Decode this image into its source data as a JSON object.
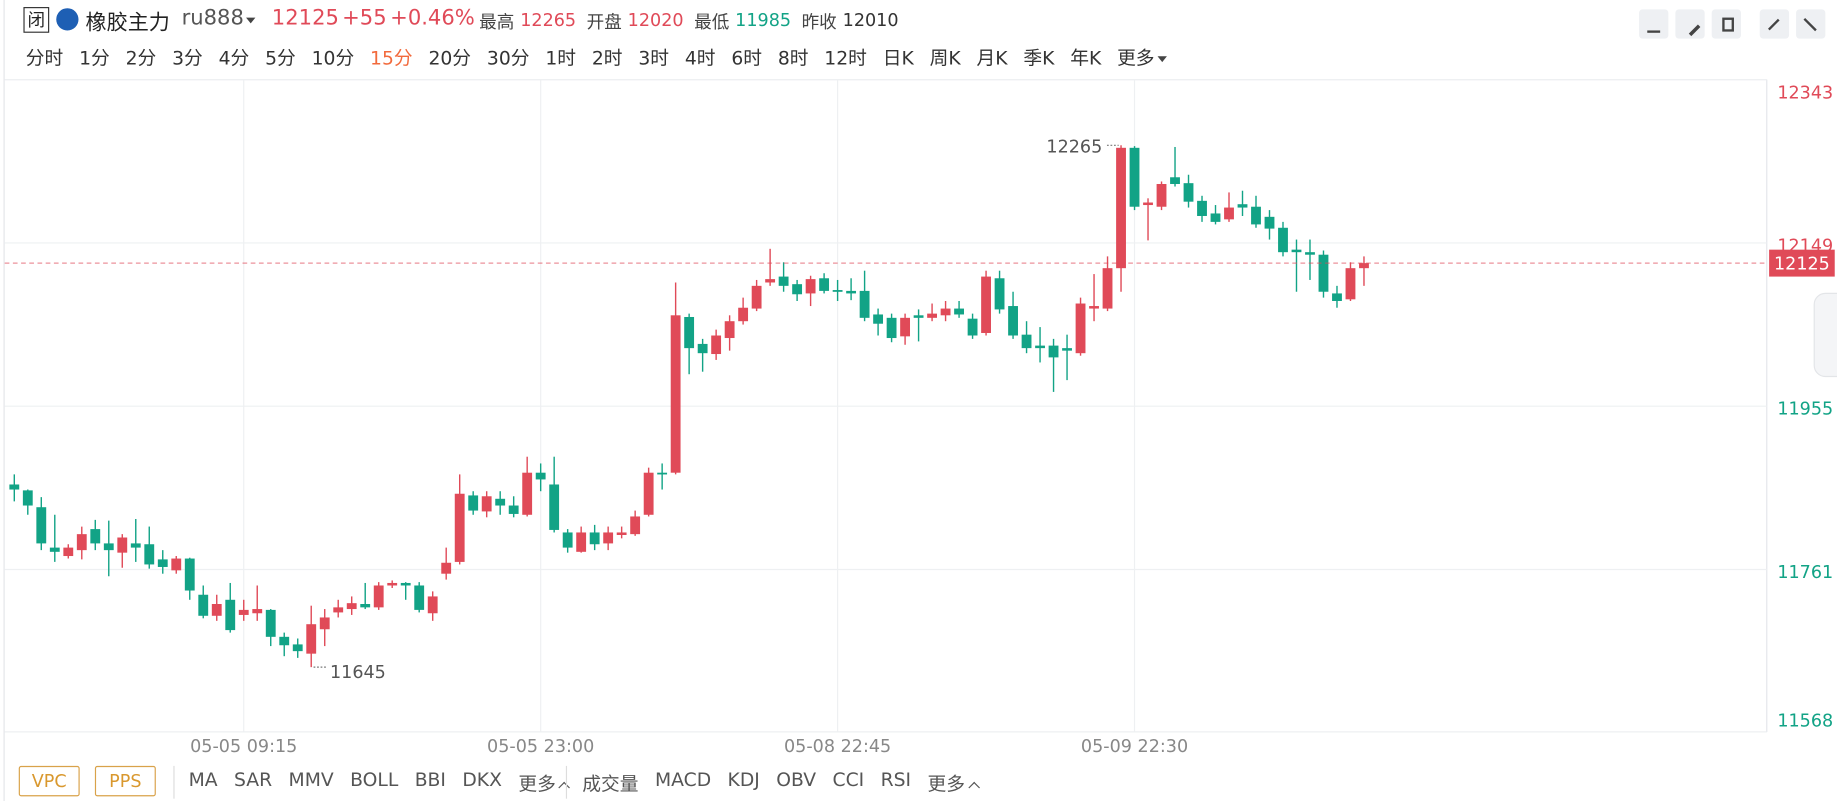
{
  "header": {
    "badge": "闭",
    "name": "橡胶主力",
    "code": "ru888",
    "price": "12125",
    "change": "+55",
    "change_pct": "+0.46%",
    "stats": [
      {
        "label": "最高",
        "value": 12265
      },
      {
        "label": "开盘",
        "value": 12020
      },
      {
        "label": "最低",
        "value": 11985
      },
      {
        "label": "昨收",
        "value": 12010
      }
    ],
    "reference_stat": 3,
    "periods": [
      "分时",
      "1分",
      "2分",
      "3分",
      "4分",
      "5分",
      "10分",
      "15分",
      "20分",
      "30分",
      "1时",
      "2时",
      "3时",
      "4时",
      "6时",
      "8时",
      "12时",
      "日K",
      "周K",
      "月K",
      "季K",
      "年K",
      "更多"
    ],
    "active_period": 7
  },
  "chart_data": {
    "type": "candlestick",
    "up_color": "#e04a58",
    "down_color": "#12a386",
    "grid": true,
    "ylim": [
      11568,
      12343
    ],
    "yticks": [
      12343,
      12149,
      11955,
      11761,
      11568
    ],
    "categories": [
      null,
      null,
      null,
      null,
      null,
      null,
      null,
      null,
      null,
      null,
      null,
      null,
      null,
      null,
      null,
      null,
      null,
      "05-05 09:15",
      null,
      null,
      null,
      null,
      null,
      null,
      null,
      null,
      null,
      null,
      null,
      null,
      null,
      null,
      null,
      null,
      null,
      null,
      null,
      null,
      null,
      "05-05 23:00",
      null,
      null,
      null,
      null,
      null,
      null,
      null,
      null,
      null,
      null,
      null,
      null,
      null,
      null,
      null,
      null,
      null,
      null,
      null,
      null,
      null,
      "05-08 22:45",
      null,
      null,
      null,
      null,
      null,
      null,
      null,
      null,
      null,
      null,
      null,
      null,
      null,
      null,
      null,
      null,
      null,
      null,
      null,
      null,
      null,
      "05-09 22:30",
      null,
      null,
      null,
      null,
      null,
      null,
      null,
      null,
      null,
      null,
      null,
      null,
      null,
      null,
      null,
      null,
      null
    ],
    "ohlc": {
      "open": [
        11862,
        11855,
        11835,
        11787,
        11777,
        11784,
        11809,
        11792,
        11781,
        11792,
        11791,
        11773,
        11760,
        11774,
        11731,
        11706,
        11725,
        11707,
        11709,
        11713,
        11681,
        11672,
        11661,
        11690,
        11710,
        11714,
        11720,
        11716,
        11742,
        11745,
        11742,
        11709,
        11756,
        11770,
        11849,
        11830,
        11845,
        11837,
        11826,
        11876,
        11862,
        11805,
        11782,
        11805,
        11792,
        11802,
        11803,
        11826,
        11876,
        11876,
        12061,
        12029,
        12017,
        12036,
        12056,
        12071,
        12102,
        12109,
        12100,
        12089,
        12107,
        12093,
        12092,
        12092,
        12064,
        12060,
        12038,
        12063,
        12060,
        12063,
        12071,
        12059,
        12042,
        12107,
        12074,
        12040,
        12027,
        12027,
        12024,
        12018,
        12071,
        12071,
        12119,
        12262,
        12194,
        12192,
        12227,
        12220,
        12199,
        12184,
        12177,
        12195,
        12192,
        12180,
        12167,
        12141,
        12138,
        12135,
        12089,
        12082,
        12119
      ],
      "high": [
        11874,
        11856,
        11847,
        11826,
        11791,
        11812,
        11820,
        11819,
        11803,
        11821,
        11812,
        11784,
        11777,
        11775,
        11742,
        11731,
        11745,
        11725,
        11742,
        11714,
        11686,
        11679,
        11718,
        11714,
        11725,
        11729,
        11745,
        11746,
        11748,
        11746,
        11746,
        11735,
        11787,
        11874,
        11854,
        11854,
        11854,
        11848,
        11895,
        11887,
        11895,
        11809,
        11812,
        11814,
        11812,
        11812,
        11831,
        11882,
        11887,
        12102,
        12065,
        12035,
        12046,
        12063,
        12084,
        12105,
        12142,
        12126,
        12105,
        12110,
        12113,
        12105,
        12107,
        12116,
        12071,
        12065,
        12065,
        12070,
        12077,
        12080,
        12080,
        12065,
        12116,
        12116,
        12091,
        12056,
        12049,
        12035,
        12040,
        12084,
        12112,
        12133,
        12265,
        12264,
        12202,
        12222,
        12263,
        12230,
        12205,
        12194,
        12209,
        12211,
        12205,
        12188,
        12174,
        12153,
        12153,
        12140,
        12098,
        12126,
        12133
      ],
      "low": [
        11842,
        11826,
        11784,
        11770,
        11774,
        11773,
        11784,
        11753,
        11763,
        11770,
        11762,
        11756,
        11756,
        11725,
        11703,
        11700,
        11686,
        11700,
        11700,
        11670,
        11658,
        11656,
        11645,
        11670,
        11704,
        11707,
        11714,
        11713,
        11739,
        11725,
        11710,
        11700,
        11749,
        11767,
        11826,
        11823,
        11826,
        11823,
        11824,
        11854,
        11805,
        11781,
        11781,
        11784,
        11784,
        11798,
        11801,
        11824,
        11856,
        11874,
        11993,
        11996,
        12010,
        12021,
        12052,
        12068,
        12098,
        12091,
        12080,
        12074,
        12089,
        12080,
        12081,
        12056,
        12039,
        12031,
        12028,
        12032,
        12056,
        12056,
        12060,
        12035,
        12039,
        12065,
        12035,
        12018,
        12007,
        11972,
        11986,
        12015,
        12056,
        12068,
        12091,
        12188,
        12152,
        12188,
        12216,
        12191,
        12174,
        12171,
        12174,
        12181,
        12167,
        12153,
        12133,
        12091,
        12105,
        12084,
        12072,
        12080,
        12098
      ],
      "close": [
        11856,
        11837,
        11792,
        11782,
        11787,
        11803,
        11792,
        11784,
        11799,
        11787,
        11767,
        11764,
        11774,
        11736,
        11706,
        11720,
        11689,
        11713,
        11714,
        11681,
        11671,
        11664,
        11696,
        11704,
        11716,
        11721,
        11716,
        11742,
        11745,
        11742,
        11713,
        11729,
        11769,
        11851,
        11831,
        11848,
        11837,
        11827,
        11876,
        11868,
        11808,
        11787,
        11805,
        11791,
        11805,
        11805,
        11824,
        11876,
        11874,
        12063,
        12024,
        12018,
        12039,
        12056,
        12072,
        12098,
        12106,
        12098,
        12088,
        12106,
        12092,
        12091,
        12089,
        12060,
        12053,
        12036,
        12060,
        12060,
        12065,
        12071,
        12064,
        12039,
        12109,
        12070,
        12039,
        12024,
        12024,
        12013,
        12021,
        12077,
        12074,
        12119,
        12262,
        12192,
        12197,
        12219,
        12219,
        12198,
        12181,
        12174,
        12191,
        12191,
        12171,
        12166,
        12138,
        12138,
        12135,
        12091,
        12080,
        12119,
        12125
      ]
    }
  },
  "footer": {
    "main_buttons": [
      "VPC",
      "PPS"
    ],
    "main_indicators": [
      "MA",
      "SAR",
      "MMV",
      "BOLL",
      "BBI",
      "DKX",
      "更多"
    ],
    "sub_indicators": [
      "成交量",
      "MACD",
      "KDJ",
      "OBV",
      "CCI",
      "RSI",
      "更多"
    ]
  }
}
